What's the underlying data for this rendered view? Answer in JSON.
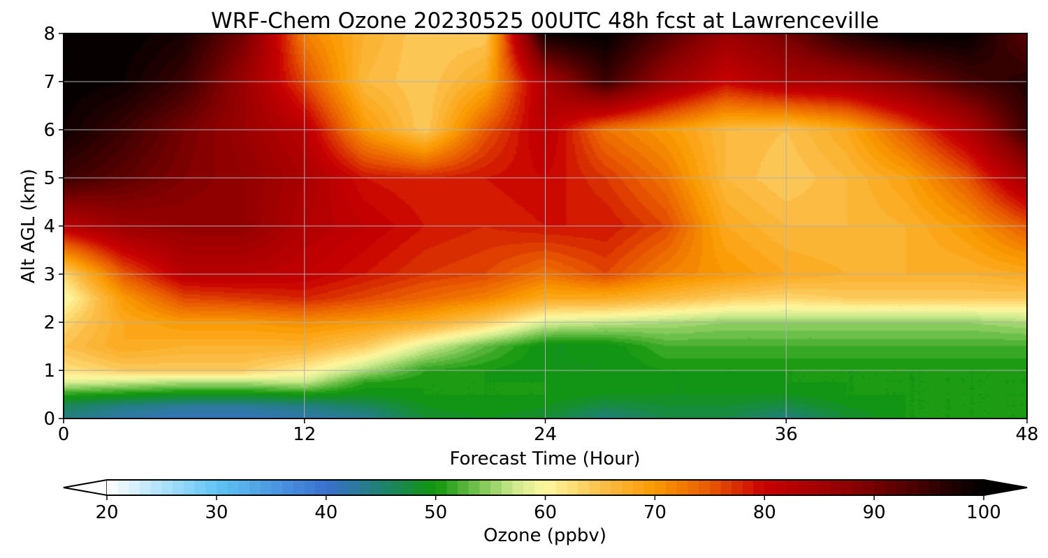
{
  "chart_data": {
    "type": "heatmap",
    "title": "WRF-Chem Ozone  20230525 00UTC 48h fcst at Lawrenceville",
    "xlabel": "Forecast Time (Hour)",
    "ylabel": "Alt AGL (km)",
    "xlim": [
      0,
      48
    ],
    "ylim": [
      0,
      8
    ],
    "x_ticks": [
      "0",
      "12",
      "24",
      "36",
      "48"
    ],
    "y_ticks": [
      "0",
      "1",
      "2",
      "3",
      "4",
      "5",
      "6",
      "7",
      "8"
    ],
    "grid": true,
    "x": [
      0,
      3,
      6,
      9,
      12,
      15,
      18,
      21,
      24,
      27,
      30,
      33,
      36,
      39,
      42,
      45,
      48
    ],
    "y": [
      0,
      0.25,
      0.5,
      0.75,
      1,
      1.5,
      2,
      2.5,
      3,
      4,
      5,
      6,
      7,
      8
    ],
    "z": [
      [
        44,
        42,
        41,
        41,
        42,
        43,
        48,
        49,
        48,
        44,
        47,
        47,
        44,
        48,
        50,
        50,
        50
      ],
      [
        46,
        44,
        43,
        43,
        44,
        46,
        49,
        50,
        49,
        47,
        48,
        48,
        47,
        49,
        50,
        50,
        50
      ],
      [
        51,
        50,
        49,
        49,
        50,
        49,
        50,
        50,
        50,
        49,
        49,
        49,
        49,
        50,
        50,
        50,
        50
      ],
      [
        58,
        57,
        56,
        56,
        57,
        51,
        50,
        50,
        50,
        50,
        49,
        49,
        50,
        50,
        50,
        50,
        50
      ],
      [
        62,
        64,
        64,
        64,
        61,
        56,
        51,
        50,
        49,
        49,
        50,
        50,
        50,
        50,
        50,
        50,
        50
      ],
      [
        65,
        68,
        67,
        67,
        67,
        64,
        58,
        53,
        49,
        49,
        52,
        52,
        52,
        52,
        52,
        52,
        52
      ],
      [
        63,
        68,
        70,
        70,
        71,
        70,
        68,
        64,
        58,
        57,
        56,
        55,
        55,
        55,
        55,
        55,
        56
      ],
      [
        59,
        70,
        76,
        77,
        78,
        76,
        74,
        72,
        68,
        68,
        66,
        64,
        63,
        64,
        64,
        64,
        64
      ],
      [
        63,
        75,
        82,
        82,
        81,
        79,
        77,
        76,
        73,
        76,
        72,
        70,
        68,
        67,
        67,
        67,
        68
      ],
      [
        82,
        86,
        87,
        87,
        83,
        81,
        79,
        78,
        79,
        79,
        76,
        68,
        66,
        66,
        67,
        70,
        75
      ],
      [
        95,
        92,
        89,
        87,
        84,
        79,
        78,
        79,
        80,
        77,
        73,
        66,
        64,
        66,
        69,
        75,
        85
      ],
      [
        99,
        95,
        90,
        86,
        82,
        70,
        64,
        75,
        82,
        73,
        70,
        66,
        65,
        68,
        75,
        83,
        95
      ],
      [
        100,
        99,
        95,
        86,
        76,
        66,
        64,
        68,
        84,
        95,
        86,
        80,
        84,
        85,
        89,
        94,
        97
      ],
      [
        100,
        100,
        98,
        90,
        72,
        67,
        64,
        64,
        99,
        100,
        93,
        86,
        90,
        97,
        100,
        100,
        92
      ]
    ],
    "colorbar": {
      "label": "Ozone  (ppbv)",
      "min": 20,
      "max": 100,
      "ticks": [
        "20",
        "30",
        "40",
        "50",
        "60",
        "70",
        "80",
        "90",
        "100"
      ],
      "extend": "both",
      "stops": [
        {
          "v": 20,
          "c": "#ffffff"
        },
        {
          "v": 30,
          "c": "#60c4f4"
        },
        {
          "v": 40,
          "c": "#3a70d0"
        },
        {
          "v": 45,
          "c": "#1f8272"
        },
        {
          "v": 50,
          "c": "#10960a"
        },
        {
          "v": 57,
          "c": "#c8e88a"
        },
        {
          "v": 60,
          "c": "#fff8a0"
        },
        {
          "v": 65,
          "c": "#fcc04c"
        },
        {
          "v": 70,
          "c": "#fa9a00"
        },
        {
          "v": 75,
          "c": "#e85a00"
        },
        {
          "v": 80,
          "c": "#c80000"
        },
        {
          "v": 88,
          "c": "#8c0000"
        },
        {
          "v": 100,
          "c": "#000000"
        }
      ]
    }
  }
}
